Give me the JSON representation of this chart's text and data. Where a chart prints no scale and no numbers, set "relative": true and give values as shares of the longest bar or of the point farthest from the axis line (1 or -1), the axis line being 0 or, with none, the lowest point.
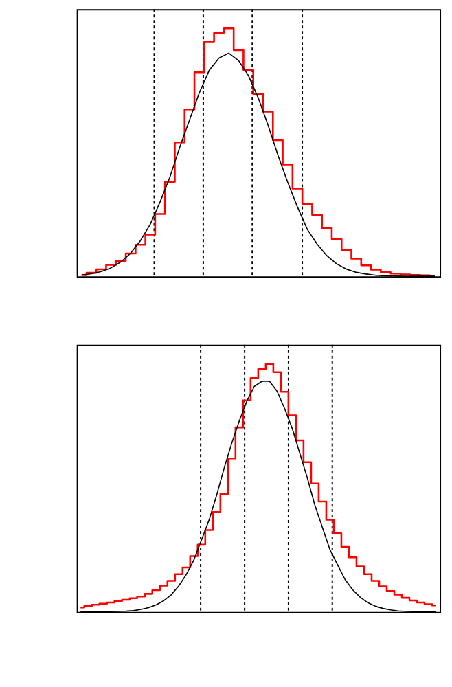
{
  "chart_data": [
    {
      "type": "line",
      "relative": true,
      "categories": [
        null,
        null,
        null,
        null,
        null,
        null,
        null,
        null,
        null,
        null,
        null,
        null,
        null,
        null,
        null,
        null,
        null,
        null,
        null,
        null,
        null,
        null,
        null,
        null,
        null,
        null,
        null,
        null,
        null,
        null,
        null,
        null,
        null,
        null,
        null,
        null,
        null
      ],
      "series": [
        {
          "type": "step",
          "color": "#ff0000",
          "values": [
            0.005,
            0.014,
            0.028,
            0.046,
            0.062,
            0.092,
            0.127,
            0.168,
            0.251,
            0.381,
            0.54,
            0.673,
            0.823,
            0.947,
            0.982,
            1.0,
            0.912,
            0.832,
            0.735,
            0.664,
            0.549,
            0.451,
            0.354,
            0.292,
            0.248,
            0.195,
            0.15,
            0.106,
            0.071,
            0.044,
            0.027,
            0.016,
            0.011,
            0.007,
            0.005,
            0.004,
            0.002
          ]
        },
        {
          "type": "line",
          "color": "#000000",
          "values": [
            0.005,
            0.01,
            0.019,
            0.034,
            0.058,
            0.093,
            0.144,
            0.21,
            0.3,
            0.4,
            0.52,
            0.63,
            0.74,
            0.83,
            0.88,
            0.9,
            0.87,
            0.81,
            0.72,
            0.61,
            0.49,
            0.38,
            0.28,
            0.19,
            0.13,
            0.083,
            0.05,
            0.029,
            0.016,
            0.009,
            0.004,
            0.002,
            0.001,
            0,
            0,
            0,
            0
          ]
        }
      ]
    },
    {
      "type": "line",
      "relative": true,
      "categories": [
        null,
        null,
        null,
        null,
        null,
        null,
        null,
        null,
        null,
        null,
        null,
        null,
        null,
        null,
        null,
        null,
        null,
        null,
        null,
        null,
        null,
        null,
        null,
        null,
        null,
        null,
        null,
        null,
        null,
        null,
        null,
        null,
        null,
        null,
        null,
        null,
        null,
        null,
        null,
        null,
        null,
        null,
        null,
        null,
        null,
        null,
        null,
        null
      ],
      "series": [
        {
          "type": "step",
          "color": "#ff0000",
          "values": [
            0.018,
            0.024,
            0.029,
            0.033,
            0.038,
            0.044,
            0.049,
            0.055,
            0.062,
            0.073,
            0.088,
            0.106,
            0.125,
            0.152,
            0.179,
            0.225,
            0.271,
            0.33,
            0.403,
            0.476,
            0.619,
            0.744,
            0.853,
            0.943,
            0.98,
            1.0,
            0.967,
            0.888,
            0.793,
            0.692,
            0.604,
            0.518,
            0.445,
            0.372,
            0.317,
            0.262,
            0.22,
            0.183,
            0.152,
            0.125,
            0.103,
            0.084,
            0.07,
            0.057,
            0.046,
            0.038,
            0.031,
            0.026
          ]
        },
        {
          "type": "line",
          "color": "#000000",
          "values": [
            0,
            0,
            0,
            0,
            0.001,
            0.002,
            0.003,
            0.005,
            0.01,
            0.017,
            0.028,
            0.045,
            0.069,
            0.105,
            0.151,
            0.21,
            0.29,
            0.37,
            0.47,
            0.58,
            0.68,
            0.77,
            0.85,
            0.91,
            0.93,
            0.93,
            0.89,
            0.82,
            0.74,
            0.64,
            0.54,
            0.43,
            0.34,
            0.25,
            0.19,
            0.13,
            0.089,
            0.059,
            0.037,
            0.023,
            0.014,
            0.008,
            0.004,
            0.002,
            0.001,
            0.001,
            0,
            0
          ]
        }
      ]
    }
  ]
}
